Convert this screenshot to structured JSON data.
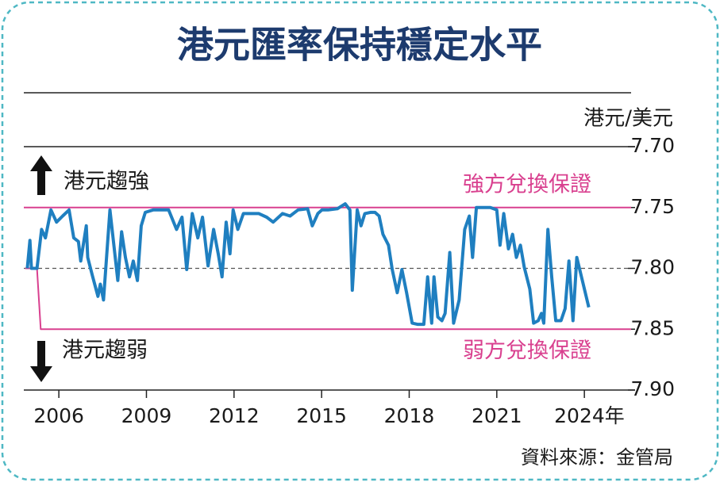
{
  "chart_data": {
    "type": "line",
    "title": "港元匯率保持穩定水平",
    "y_axis_label": "港元/美元",
    "annotations": {
      "strong": "港元趨強",
      "weak": "港元趨弱"
    },
    "source": "資料來源：金管局",
    "y_inverted": true,
    "xlim": [
      2004.8,
      2025.6
    ],
    "xticks": [
      2006,
      2009,
      2012,
      2015,
      2018,
      2021,
      {
        "value": 2024,
        "label": "2024年"
      }
    ],
    "ylim": [
      7.7,
      7.9
    ],
    "yticks": [
      {
        "value": 7.7,
        "label": "7.70"
      },
      7.75,
      {
        "value": 7.8,
        "label": "7.80"
      },
      7.85,
      {
        "value": 7.9,
        "label": "7.90"
      }
    ],
    "reference_line": {
      "value": 7.8,
      "color": "#555555",
      "dashed": true
    },
    "series": [
      {
        "color": "#1f7fc0",
        "x": [
          2004.92,
          2005.01,
          2005.06,
          2005.25,
          2005.41,
          2005.54,
          2005.73,
          2005.92,
          2006.13,
          2006.35,
          2006.51,
          2006.67,
          2006.75,
          2006.94,
          2006.99,
          2007.16,
          2007.34,
          2007.42,
          2007.53,
          2007.75,
          2008.02,
          2008.15,
          2008.28,
          2008.42,
          2008.55,
          2008.69,
          2008.82,
          2008.96,
          2009.23,
          2009.76,
          2010.03,
          2010.22,
          2010.38,
          2010.57,
          2010.76,
          2010.92,
          2011.11,
          2011.3,
          2011.46,
          2011.59,
          2011.73,
          2011.86,
          2011.97,
          2012.13,
          2012.32,
          2012.59,
          2012.85,
          2013.12,
          2013.34,
          2013.66,
          2013.92,
          2014.19,
          2014.52,
          2014.68,
          2014.87,
          2015.01,
          2015.22,
          2015.54,
          2015.81,
          2015.97,
          2016.05,
          2016.22,
          2016.35,
          2016.48,
          2016.67,
          2016.83,
          2016.97,
          2017.1,
          2017.29,
          2017.42,
          2017.59,
          2017.75,
          2017.91,
          2018.1,
          2018.28,
          2018.5,
          2018.63,
          2018.77,
          2018.85,
          2018.98,
          2019.12,
          2019.23,
          2019.39,
          2019.52,
          2019.71,
          2019.9,
          2020.06,
          2020.17,
          2020.3,
          2020.52,
          2020.78,
          2021.0,
          2021.11,
          2021.24,
          2021.4,
          2021.54,
          2021.67,
          2021.81,
          2021.94,
          2022.13,
          2022.26,
          2022.42,
          2022.53,
          2022.61,
          2022.75,
          2022.88,
          2023.02,
          2023.2,
          2023.34,
          2023.47,
          2023.61,
          2023.74,
          2023.93,
          2024.15
        ],
        "values": [
          7.8,
          7.777,
          7.8,
          7.8,
          7.768,
          7.775,
          7.752,
          7.762,
          7.757,
          7.752,
          7.775,
          7.778,
          7.794,
          7.765,
          7.791,
          7.807,
          7.823,
          7.813,
          7.826,
          7.752,
          7.81,
          7.77,
          7.791,
          7.807,
          7.794,
          7.81,
          7.765,
          7.754,
          7.752,
          7.752,
          7.768,
          7.758,
          7.801,
          7.755,
          7.775,
          7.758,
          7.798,
          7.768,
          7.788,
          7.807,
          7.762,
          7.788,
          7.752,
          7.768,
          7.755,
          7.755,
          7.755,
          7.758,
          7.762,
          7.755,
          7.757,
          7.752,
          7.751,
          7.765,
          7.755,
          7.752,
          7.752,
          7.751,
          7.747,
          7.752,
          7.818,
          7.752,
          7.765,
          7.755,
          7.754,
          7.754,
          7.757,
          7.772,
          7.781,
          7.801,
          7.82,
          7.801,
          7.82,
          7.845,
          7.846,
          7.846,
          7.807,
          7.845,
          7.807,
          7.84,
          7.843,
          7.837,
          7.787,
          7.845,
          7.826,
          7.768,
          7.757,
          7.791,
          7.75,
          7.75,
          7.75,
          7.752,
          7.781,
          7.755,
          7.784,
          7.772,
          7.791,
          7.781,
          7.799,
          7.817,
          7.845,
          7.843,
          7.837,
          7.845,
          7.768,
          7.807,
          7.843,
          7.843,
          7.833,
          7.794,
          7.843,
          7.791,
          7.81,
          7.832
        ]
      },
      {
        "name": "強方兌換保證",
        "color": "#d9408f",
        "x": [
          2004.8,
          2025.6
        ],
        "values": [
          7.75,
          7.75
        ]
      },
      {
        "name": "弱方兌換保證",
        "color": "#d9408f",
        "x": [
          2004.85,
          2005.25,
          2005.38,
          2025.6
        ],
        "values": [
          7.8,
          7.8,
          7.85,
          7.85
        ]
      }
    ]
  }
}
